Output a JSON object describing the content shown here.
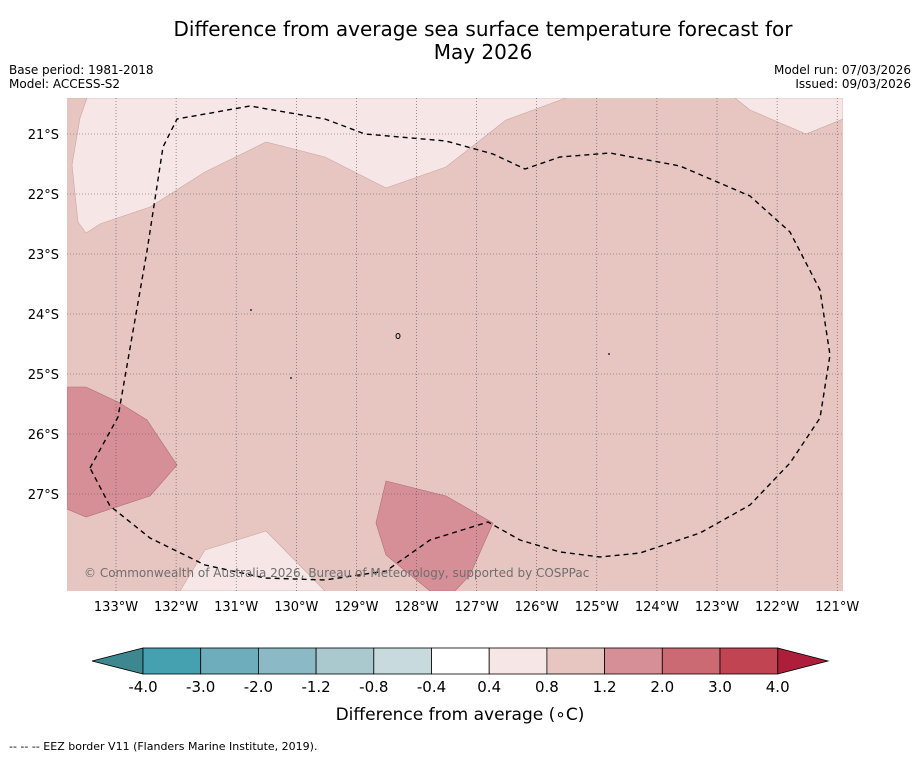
{
  "header": {
    "title_line1": "Difference from average sea surface temperature forecast for",
    "title_line2": "May 2026",
    "base_period": "Base period: 1981-2018",
    "model": "Model: ACCESS-S2",
    "model_run": "Model run: 07/03/2026",
    "issued": "Issued: 09/03/2026"
  },
  "map": {
    "copyright": "© Commonwealth of Australia 2026, Bureau of Meteorology, supported by COSPPac",
    "footnote": "--  --  -- EEZ border V11 (Flanders Marine Institute, 2019)."
  },
  "chart_data": {
    "type": "heatmap",
    "title": "Difference from average sea surface temperature forecast for May 2026",
    "region": {
      "lon_range": [
        "133.8°W",
        "120.9°W"
      ],
      "lat_range": [
        "20.4°S",
        "28.6°S"
      ]
    },
    "x_ticks": [
      "133°W",
      "132°W",
      "131°W",
      "130°W",
      "129°W",
      "128°W",
      "127°W",
      "126°W",
      "125°W",
      "124°W",
      "123°W",
      "122°W",
      "121°W"
    ],
    "y_ticks": [
      "21°S",
      "22°S",
      "23°S",
      "24°S",
      "25°S",
      "26°S",
      "27°S"
    ],
    "colorbar": {
      "label": "Difference from average (∘C)",
      "boundaries": [
        "-4.0",
        "-3.0",
        "-2.0",
        "-1.2",
        "-0.8",
        "-0.4",
        "0.4",
        "0.8",
        "1.2",
        "2.0",
        "3.0",
        "4.0"
      ],
      "colors": [
        "#45a0b0",
        "#6dadbc",
        "#8bb9c5",
        "#a9c9ce",
        "#c8dadd",
        "#ffffff",
        "#f6e7e6",
        "#e7c6c2",
        "#d78f97",
        "#cb6a72",
        "#c04452"
      ],
      "under_color": "#3d8890",
      "over_color": "#ae1d39"
    },
    "fields": [
      {
        "category": "0.4 to 0.8",
        "description": "northern band and south-west patch"
      },
      {
        "category": "0.8 to 1.2",
        "description": "majority of domain"
      },
      {
        "category": "1.2 to 2.0",
        "description": "west edge near 26°S and near 128°W 27.5°S"
      }
    ],
    "legend": "EEZ border V11 (Flanders Marine Institute, 2019)"
  }
}
